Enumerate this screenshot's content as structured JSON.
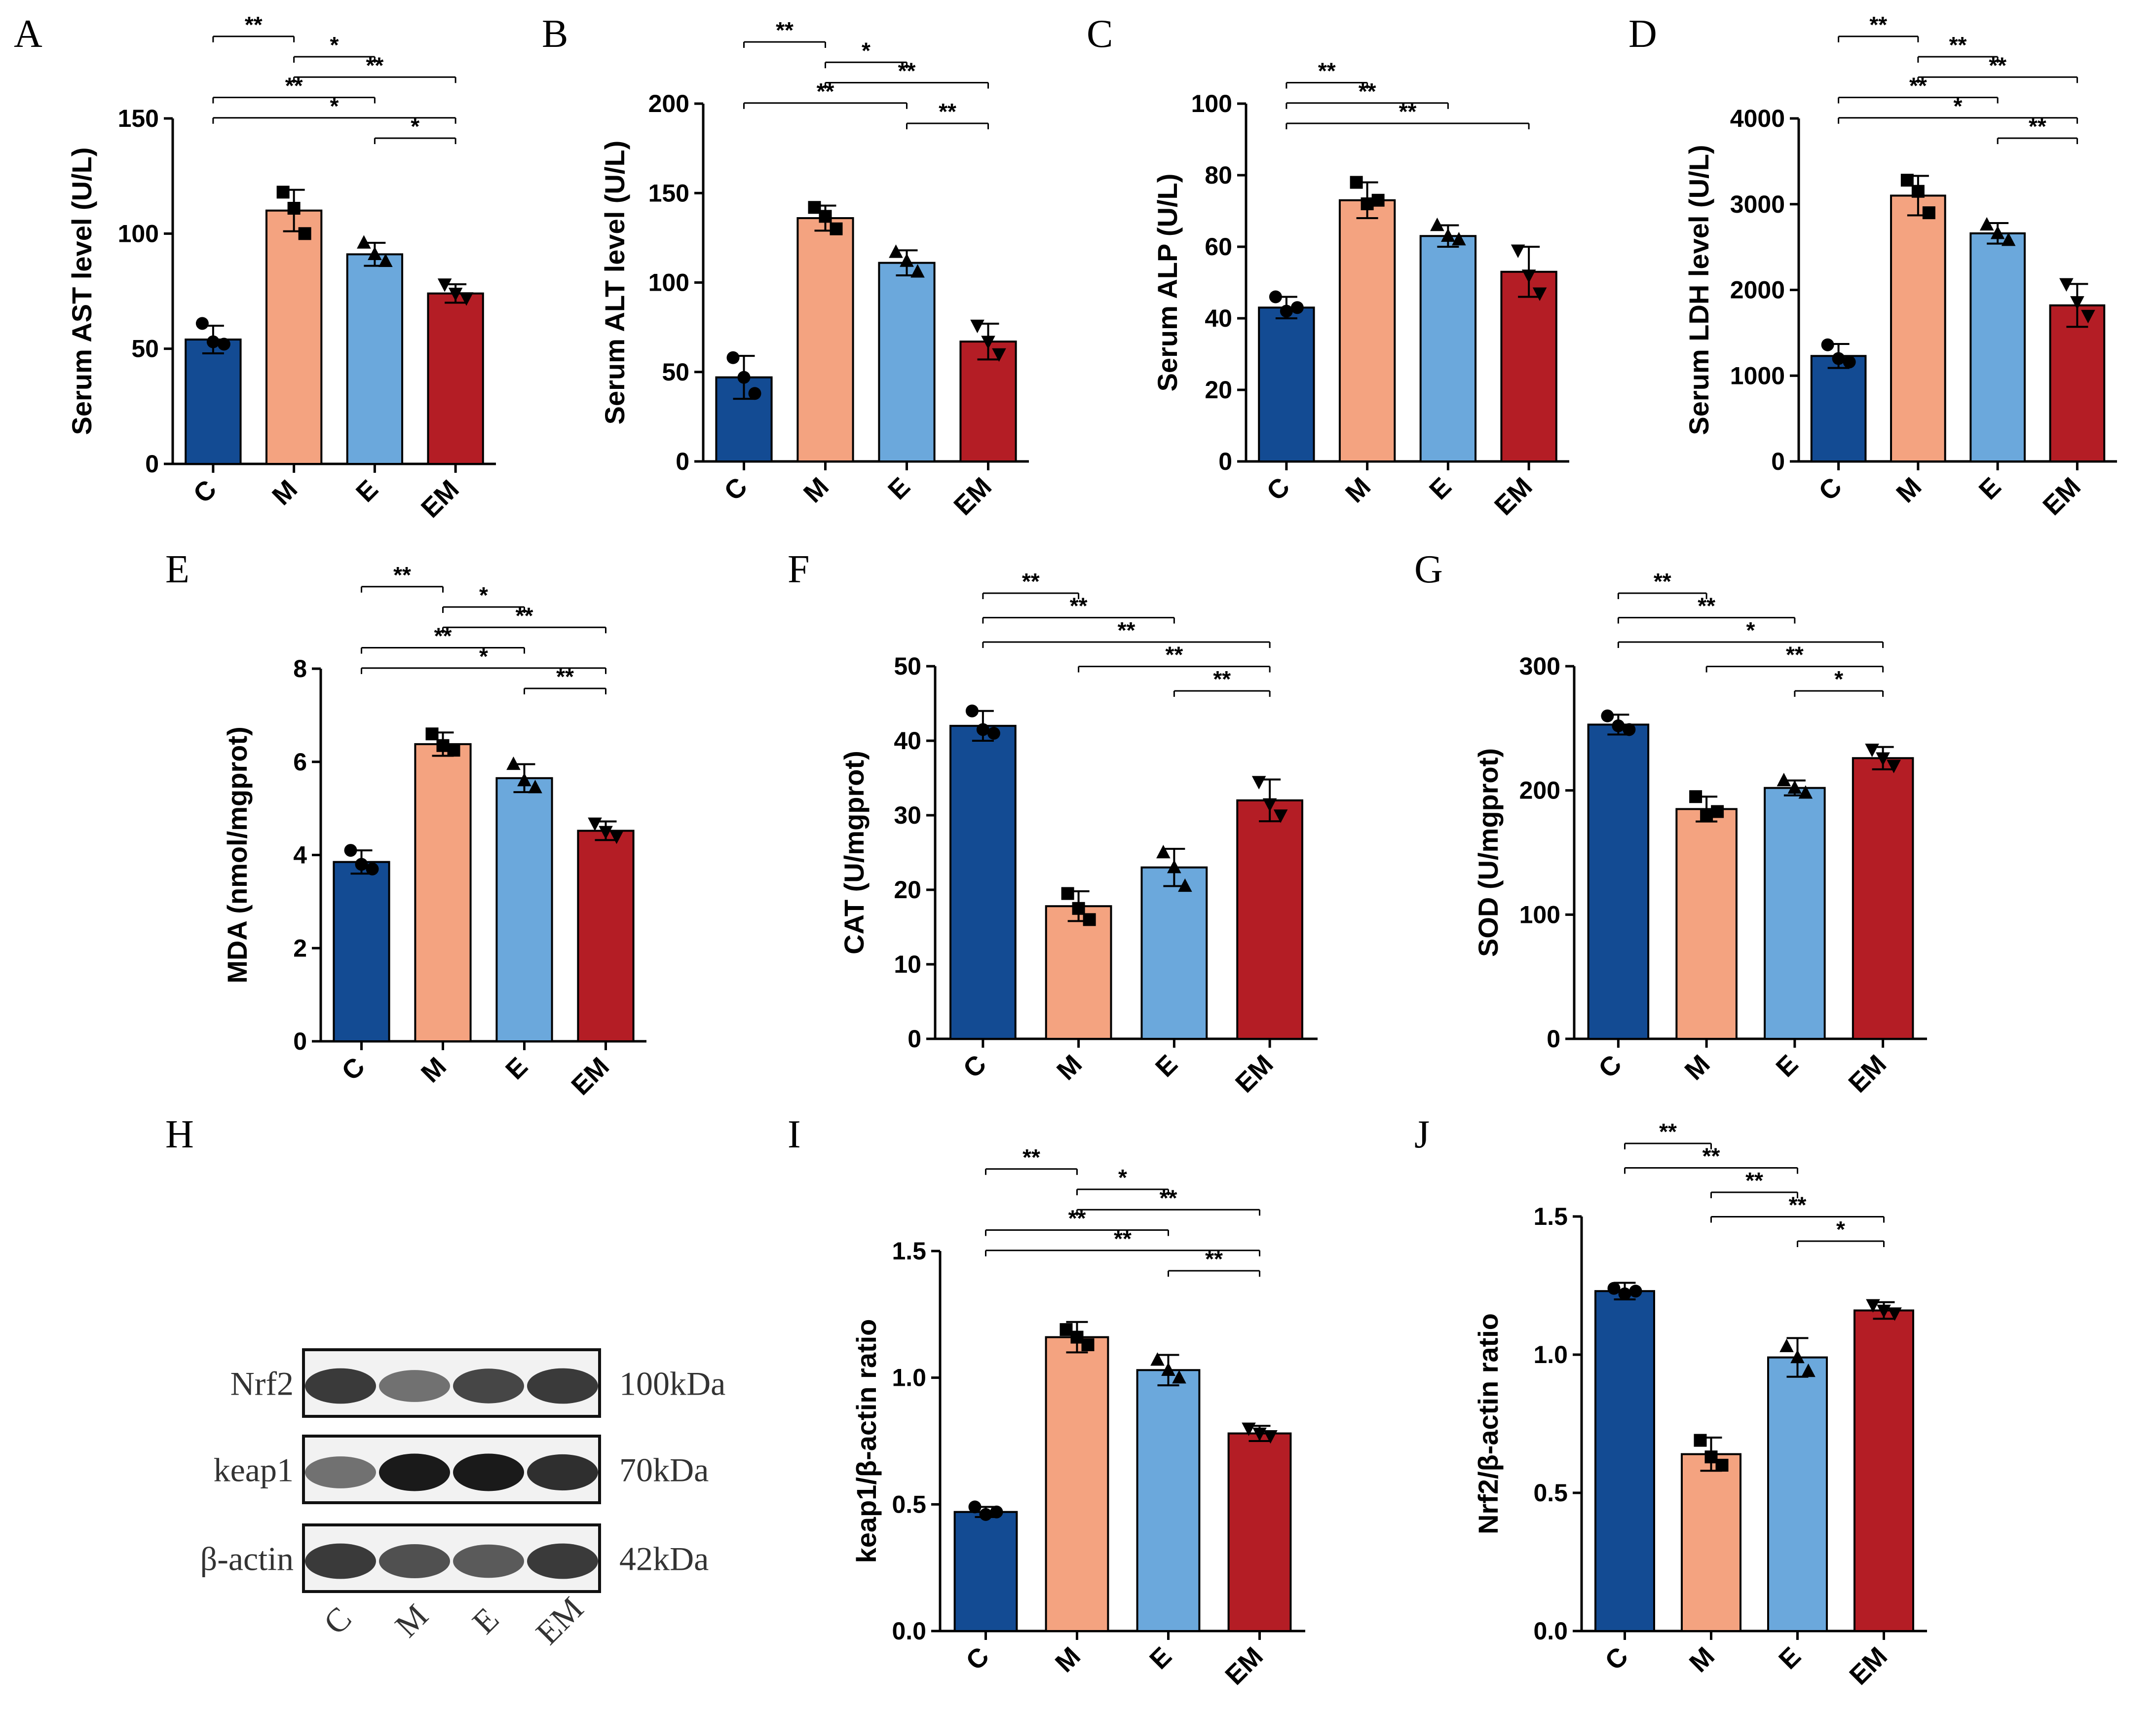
{
  "chart_data": [
    {
      "type": "bar",
      "panel": "A",
      "ylabel": "Serum AST level (U/L)",
      "ylim": [
        0,
        150
      ],
      "yticks": [
        0,
        50,
        100,
        150
      ],
      "categories": [
        "C",
        "M",
        "E",
        "EM"
      ],
      "values": [
        54,
        110,
        91,
        74
      ],
      "errors": [
        6,
        9,
        5,
        4
      ],
      "points": [
        [
          61,
          53,
          52
        ],
        [
          118,
          111,
          100
        ],
        [
          96,
          91,
          88
        ],
        [
          78,
          74,
          72
        ]
      ],
      "significance": [
        {
          "from": "C",
          "to": "M",
          "label": "**"
        },
        {
          "from": "M",
          "to": "E",
          "label": "*"
        },
        {
          "from": "M",
          "to": "EM",
          "label": "**"
        },
        {
          "from": "C",
          "to": "E",
          "label": "**"
        },
        {
          "from": "C",
          "to": "EM",
          "label": "*"
        },
        {
          "from": "E",
          "to": "EM",
          "label": "*"
        }
      ]
    },
    {
      "type": "bar",
      "panel": "B",
      "ylabel": "Serum ALT level (U/L)",
      "ylim": [
        0,
        200
      ],
      "yticks": [
        0,
        50,
        100,
        150,
        200
      ],
      "categories": [
        "C",
        "M",
        "E",
        "EM"
      ],
      "values": [
        47,
        136,
        111,
        67
      ],
      "errors": [
        12,
        7,
        7,
        10
      ],
      "points": [
        [
          58,
          47,
          38
        ],
        [
          142,
          137,
          130
        ],
        [
          117,
          112,
          106
        ],
        [
          76,
          67,
          60
        ]
      ],
      "significance": [
        {
          "from": "C",
          "to": "M",
          "label": "**"
        },
        {
          "from": "M",
          "to": "E",
          "label": "*"
        },
        {
          "from": "M",
          "to": "EM",
          "label": "**"
        },
        {
          "from": "C",
          "to": "E",
          "label": "**"
        },
        {
          "from": "E",
          "to": "EM",
          "label": "**"
        }
      ]
    },
    {
      "type": "bar",
      "panel": "C",
      "ylabel": "Serum ALP (U/L)",
      "ylim": [
        0,
        100
      ],
      "yticks": [
        0,
        20,
        40,
        60,
        80,
        100
      ],
      "categories": [
        "C",
        "M",
        "E",
        "EM"
      ],
      "values": [
        43,
        73,
        63,
        53
      ],
      "errors": [
        3,
        5,
        3,
        7
      ],
      "points": [
        [
          46,
          42,
          43
        ],
        [
          78,
          72,
          73
        ],
        [
          66,
          63,
          62
        ],
        [
          59,
          52,
          47
        ]
      ],
      "significance": [
        {
          "from": "C",
          "to": "M",
          "label": "**"
        },
        {
          "from": "C",
          "to": "E",
          "label": "**"
        },
        {
          "from": "C",
          "to": "EM",
          "label": "**"
        }
      ]
    },
    {
      "type": "bar",
      "panel": "D",
      "ylabel": "Serum LDH level (U/L)",
      "ylim": [
        0,
        4000
      ],
      "yticks": [
        0,
        1000,
        2000,
        3000,
        4000
      ],
      "categories": [
        "C",
        "M",
        "E",
        "EM"
      ],
      "values": [
        1230,
        3100,
        2660,
        1820
      ],
      "errors": [
        140,
        230,
        120,
        250
      ],
      "points": [
        [
          1360,
          1200,
          1160
        ],
        [
          3280,
          3150,
          2900
        ],
        [
          2760,
          2660,
          2580
        ],
        [
          2070,
          1860,
          1700
        ]
      ],
      "significance": [
        {
          "from": "C",
          "to": "M",
          "label": "**"
        },
        {
          "from": "M",
          "to": "E",
          "label": "**"
        },
        {
          "from": "M",
          "to": "EM",
          "label": "**"
        },
        {
          "from": "C",
          "to": "E",
          "label": "**"
        },
        {
          "from": "C",
          "to": "EM",
          "label": "*"
        },
        {
          "from": "E",
          "to": "EM",
          "label": "**"
        }
      ]
    },
    {
      "type": "bar",
      "panel": "E",
      "ylabel": "MDA (nmol/mgprot)",
      "ylim": [
        0,
        8
      ],
      "yticks": [
        0,
        2,
        4,
        6,
        8
      ],
      "categories": [
        "C",
        "M",
        "E",
        "EM"
      ],
      "values": [
        3.85,
        6.38,
        5.65,
        4.52
      ],
      "errors": [
        0.25,
        0.25,
        0.3,
        0.2
      ],
      "points": [
        [
          4.1,
          3.8,
          3.7
        ],
        [
          6.6,
          6.35,
          6.25
        ],
        [
          5.95,
          5.6,
          5.45
        ],
        [
          4.68,
          4.5,
          4.4
        ]
      ],
      "significance": [
        {
          "from": "C",
          "to": "M",
          "label": "**"
        },
        {
          "from": "M",
          "to": "E",
          "label": "*"
        },
        {
          "from": "M",
          "to": "EM",
          "label": "**"
        },
        {
          "from": "C",
          "to": "E",
          "label": "**"
        },
        {
          "from": "C",
          "to": "EM",
          "label": "*"
        },
        {
          "from": "E",
          "to": "EM",
          "label": "**"
        }
      ]
    },
    {
      "type": "bar",
      "panel": "F",
      "ylabel": "CAT (U/mgprot)",
      "ylim": [
        0,
        50
      ],
      "yticks": [
        0,
        10,
        20,
        30,
        40,
        50
      ],
      "categories": [
        "C",
        "M",
        "E",
        "EM"
      ],
      "values": [
        42,
        17.8,
        23,
        32
      ],
      "errors": [
        2,
        2,
        2.5,
        2.8
      ],
      "points": [
        [
          44,
          41.5,
          41
        ],
        [
          19.5,
          17.5,
          16
        ],
        [
          25,
          23,
          20.5
        ],
        [
          34.5,
          31.5,
          30
        ]
      ],
      "significance": [
        {
          "from": "C",
          "to": "M",
          "label": "**"
        },
        {
          "from": "C",
          "to": "E",
          "label": "**"
        },
        {
          "from": "C",
          "to": "EM",
          "label": "**"
        },
        {
          "from": "M",
          "to": "EM",
          "label": "**"
        },
        {
          "from": "E",
          "to": "EM",
          "label": "**"
        }
      ]
    },
    {
      "type": "bar",
      "panel": "G",
      "ylabel": "SOD (U/mgprot)",
      "ylim": [
        0,
        300
      ],
      "yticks": [
        0,
        100,
        200,
        300
      ],
      "categories": [
        "C",
        "M",
        "E",
        "EM"
      ],
      "values": [
        253,
        185,
        202,
        226
      ],
      "errors": [
        8,
        10,
        6,
        9
      ],
      "points": [
        [
          260,
          252,
          249
        ],
        [
          195,
          180,
          183
        ],
        [
          208,
          202,
          198
        ],
        [
          233,
          226,
          220
        ]
      ],
      "significance": [
        {
          "from": "C",
          "to": "M",
          "label": "**"
        },
        {
          "from": "C",
          "to": "E",
          "label": "**"
        },
        {
          "from": "C",
          "to": "EM",
          "label": "*"
        },
        {
          "from": "M",
          "to": "EM",
          "label": "**"
        },
        {
          "from": "E",
          "to": "EM",
          "label": "*"
        }
      ]
    },
    {
      "type": "bar",
      "panel": "I",
      "ylabel": "keap1/β-actin ratio",
      "ylim": [
        0,
        1.5
      ],
      "yticks": [
        "0.0",
        "0.5",
        "1.0",
        "1.5"
      ],
      "categories": [
        "C",
        "M",
        "E",
        "EM"
      ],
      "values": [
        0.47,
        1.16,
        1.03,
        0.78
      ],
      "errors": [
        0.02,
        0.06,
        0.06,
        0.03
      ],
      "points": [
        [
          0.49,
          0.46,
          0.47
        ],
        [
          1.19,
          1.16,
          1.13
        ],
        [
          1.07,
          1.03,
          1.0
        ],
        [
          0.8,
          0.78,
          0.77
        ]
      ],
      "significance": [
        {
          "from": "C",
          "to": "M",
          "label": "**"
        },
        {
          "from": "M",
          "to": "E",
          "label": "*"
        },
        {
          "from": "M",
          "to": "EM",
          "label": "**"
        },
        {
          "from": "C",
          "to": "E",
          "label": "**"
        },
        {
          "from": "C",
          "to": "EM",
          "label": "**"
        },
        {
          "from": "E",
          "to": "EM",
          "label": "**"
        }
      ]
    },
    {
      "type": "bar",
      "panel": "J",
      "ylabel": "Nrf2/β-actin ratio",
      "ylim": [
        0,
        1.5
      ],
      "yticks": [
        "0.0",
        "0.5",
        "1.0",
        "1.5"
      ],
      "categories": [
        "C",
        "M",
        "E",
        "EM"
      ],
      "values": [
        1.23,
        0.64,
        0.99,
        1.16
      ],
      "errors": [
        0.03,
        0.06,
        0.07,
        0.03
      ],
      "points": [
        [
          1.24,
          1.22,
          1.23
        ],
        [
          0.69,
          0.63,
          0.6
        ],
        [
          1.03,
          0.99,
          0.94
        ],
        [
          1.18,
          1.16,
          1.15
        ]
      ],
      "significance": [
        {
          "from": "C",
          "to": "M",
          "label": "**"
        },
        {
          "from": "C",
          "to": "E",
          "label": "**"
        },
        {
          "from": "M",
          "to": "E",
          "label": "**"
        },
        {
          "from": "M",
          "to": "EM",
          "label": "**"
        },
        {
          "from": "E",
          "to": "EM",
          "label": "*"
        }
      ]
    }
  ],
  "colors": {
    "C": "#134b93",
    "M": "#f4a380",
    "E": "#6ba8dc",
    "EM": "#b41d25",
    "axis": "#000000"
  },
  "western_blot": {
    "panel": "H",
    "rows": [
      {
        "protein": "Nrf2",
        "size": "100kDa"
      },
      {
        "protein": "keap1",
        "size": "70kDa"
      },
      {
        "protein": "β-actin",
        "size": "42kDa"
      }
    ],
    "lanes": [
      "C",
      "M",
      "E",
      "EM"
    ]
  }
}
